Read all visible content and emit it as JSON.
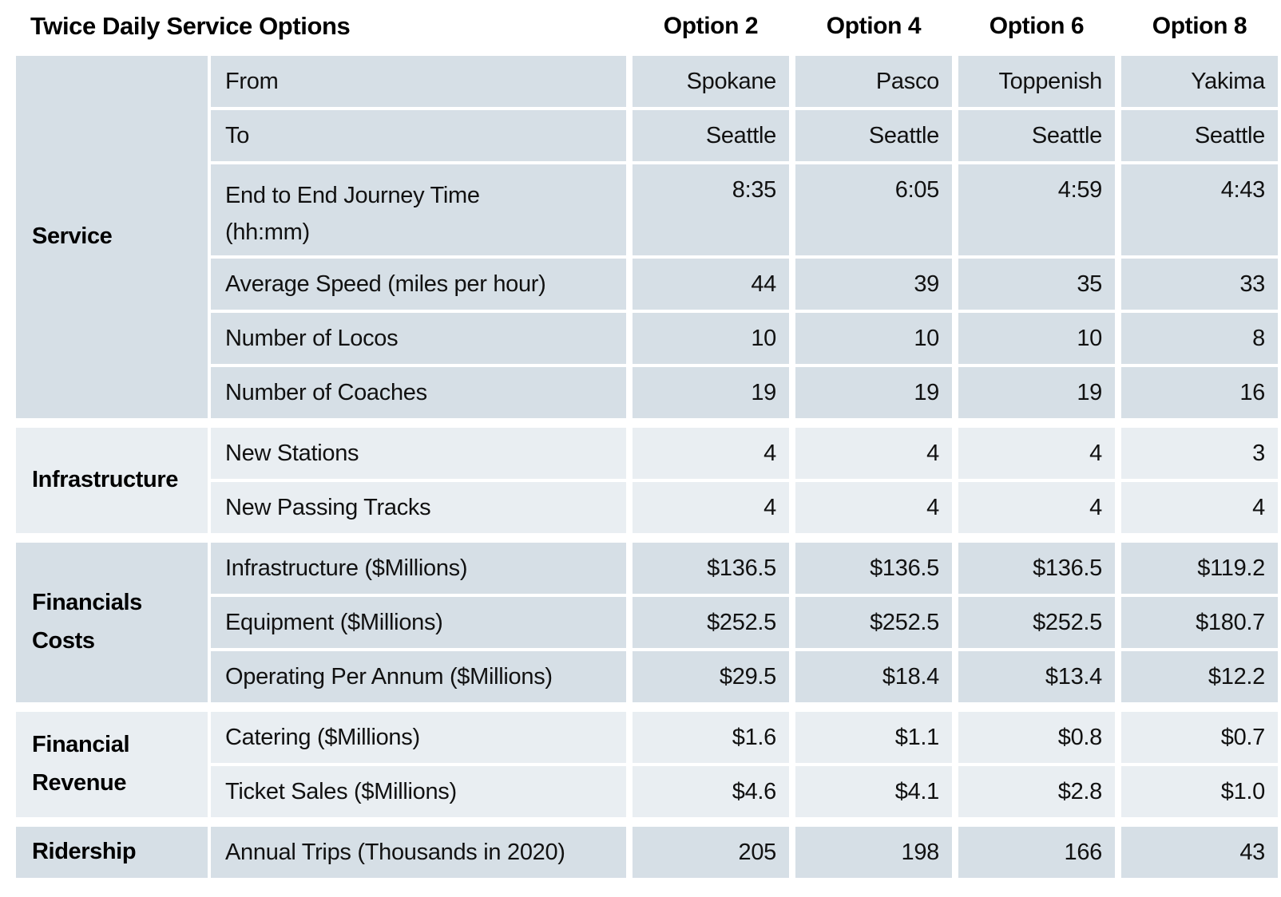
{
  "chart_data": {
    "type": "table",
    "title": "Twice Daily Service Options",
    "columns": [
      "Option 2",
      "Option 4",
      "Option 6",
      "Option 8"
    ],
    "groups": [
      {
        "name": "Service",
        "rows": [
          {
            "label": "From",
            "values": [
              "Spokane",
              "Pasco",
              "Toppenish",
              "Yakima"
            ]
          },
          {
            "label": "To",
            "values": [
              "Seattle",
              "Seattle",
              "Seattle",
              "Seattle"
            ]
          },
          {
            "label": "End to End Journey Time (hh:mm)",
            "values": [
              "8:35",
              "6:05",
              "4:59",
              "4:43"
            ]
          },
          {
            "label": "Average Speed (miles per hour)",
            "values": [
              "44",
              "39",
              "35",
              "33"
            ]
          },
          {
            "label": "Number of Locos",
            "values": [
              "10",
              "10",
              "10",
              "8"
            ]
          },
          {
            "label": "Number of Coaches",
            "values": [
              "19",
              "19",
              "19",
              "16"
            ]
          }
        ]
      },
      {
        "name": "Infrastructure",
        "rows": [
          {
            "label": "New Stations",
            "values": [
              "4",
              "4",
              "4",
              "3"
            ]
          },
          {
            "label": "New Passing Tracks",
            "values": [
              "4",
              "4",
              "4",
              "4"
            ]
          }
        ]
      },
      {
        "name": "Financials Costs",
        "rows": [
          {
            "label": "Infrastructure ($Millions)",
            "values": [
              "$136.5",
              "$136.5",
              "$136.5",
              "$119.2"
            ]
          },
          {
            "label": "Equipment ($Millions)",
            "values": [
              "$252.5",
              "$252.5",
              "$252.5",
              "$180.7"
            ]
          },
          {
            "label": "Operating Per Annum ($Millions)",
            "values": [
              "$29.5",
              "$18.4",
              "$13.4",
              "$12.2"
            ]
          }
        ]
      },
      {
        "name": "Financial Revenue",
        "rows": [
          {
            "label": "Catering ($Millions)",
            "values": [
              "$1.6",
              "$1.1",
              "$0.8",
              "$0.7"
            ]
          },
          {
            "label": "Ticket Sales ($Millions)",
            "values": [
              "$4.6",
              "$4.1",
              "$2.8",
              "$1.0"
            ]
          }
        ]
      },
      {
        "name": "Ridership",
        "rows": [
          {
            "label": "Annual Trips (Thousands in 2020)",
            "values": [
              "205",
              "198",
              "166",
              "43"
            ]
          }
        ]
      }
    ],
    "layout_hints": {
      "grid": "banded-groups",
      "value_alignment": "right"
    }
  },
  "colors": {
    "band_dark": "#d6dfe6",
    "band_light": "#e9eef2",
    "text": "#111111",
    "gap": "#ffffff"
  }
}
